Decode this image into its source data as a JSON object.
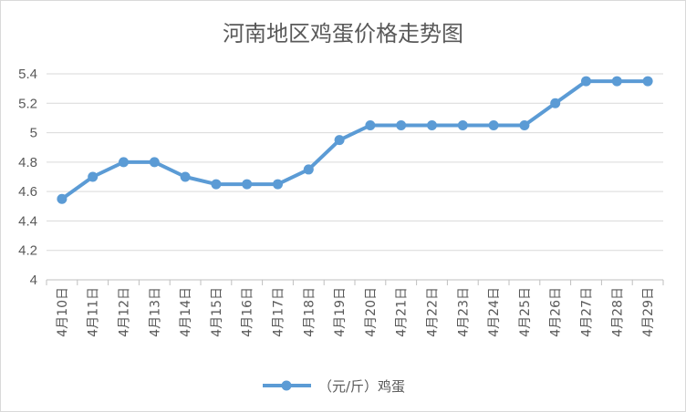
{
  "chart_data": {
    "type": "line",
    "title": "河南地区鸡蛋价格走势图",
    "categories": [
      "4月10日",
      "4月11日",
      "4月12日",
      "4月13日",
      "4月14日",
      "4月15日",
      "4月16日",
      "4月17日",
      "4月18日",
      "4月19日",
      "4月20日",
      "4月21日",
      "4月22日",
      "4月23日",
      "4月24日",
      "4月25日",
      "4月26日",
      "4月27日",
      "4月28日",
      "4月29日"
    ],
    "series": [
      {
        "name": "（元/斤）鸡蛋",
        "values": [
          4.55,
          4.7,
          4.8,
          4.8,
          4.7,
          4.65,
          4.65,
          4.65,
          4.75,
          4.95,
          5.05,
          5.05,
          5.05,
          5.05,
          5.05,
          5.05,
          5.2,
          5.35,
          5.35,
          5.35
        ]
      }
    ],
    "ylim": [
      4,
      5.4
    ],
    "yticks": [
      "4",
      "4.2",
      "4.4",
      "4.6",
      "4.8",
      "5",
      "5.2",
      "5.4"
    ],
    "grid": true,
    "legend": "bottom",
    "colors": {
      "series": "#5b9bd5",
      "grid": "#d9d9d9",
      "axis": "#bfbfbf",
      "text": "#595959"
    }
  }
}
